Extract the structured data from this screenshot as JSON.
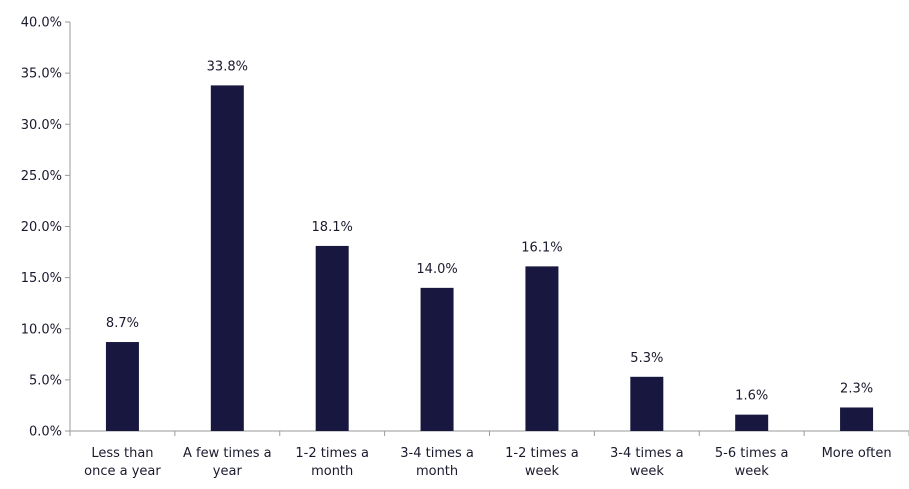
{
  "chart_data": {
    "type": "bar",
    "categories": [
      [
        "Less than",
        "once a year"
      ],
      [
        "A few times a",
        "year"
      ],
      [
        "1-2 times a",
        "month"
      ],
      [
        "3-4 times a",
        "month"
      ],
      [
        "1-2 times a",
        "week"
      ],
      [
        "3-4 times a",
        "week"
      ],
      [
        "5-6 times a",
        "week"
      ],
      [
        "More often"
      ]
    ],
    "values": [
      8.7,
      33.8,
      18.1,
      14.0,
      16.1,
      5.3,
      1.6,
      2.3
    ],
    "data_labels": [
      "8.7%",
      "33.8%",
      "18.1%",
      "14.0%",
      "16.1%",
      "5.3%",
      "1.6%",
      "2.3%"
    ],
    "y_ticks": [
      0,
      5,
      10,
      15,
      20,
      25,
      30,
      35,
      40
    ],
    "y_tick_labels": [
      "0.0%",
      "5.0%",
      "10.0%",
      "15.0%",
      "20.0%",
      "25.0%",
      "30.0%",
      "35.0%",
      "40.0%"
    ],
    "ylim": [
      0,
      40
    ],
    "title": "",
    "xlabel": "",
    "ylabel": "",
    "grid": false,
    "bar_color": "#17173f",
    "axis_color": "#9a9a9a"
  }
}
